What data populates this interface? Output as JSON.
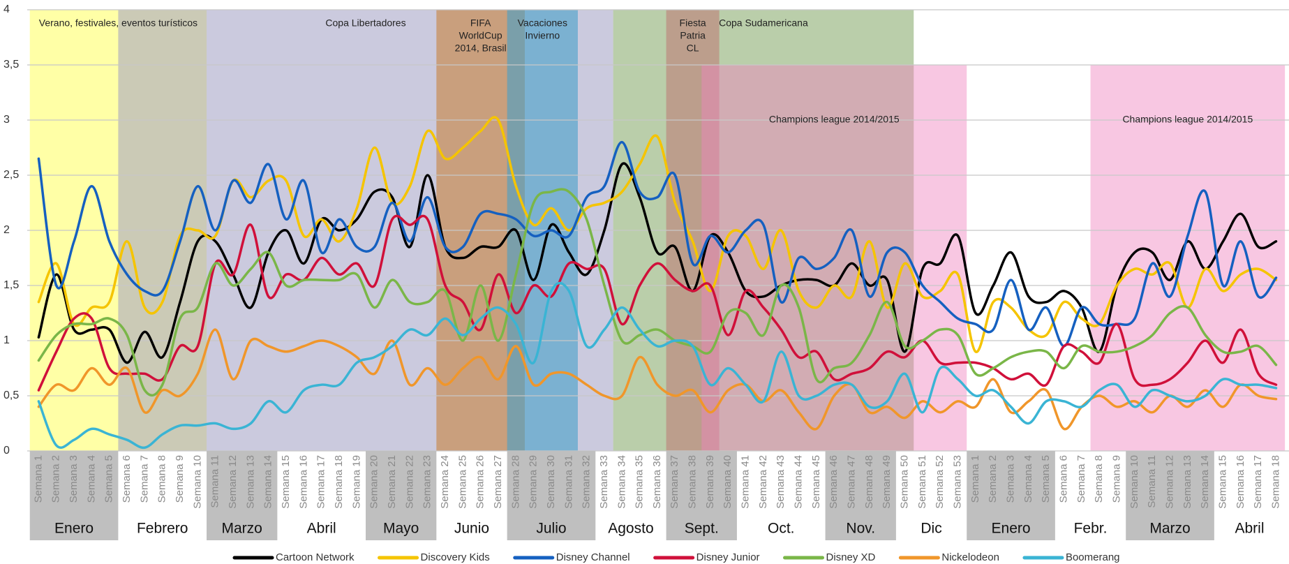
{
  "chart_data": {
    "type": "line",
    "categories": [
      "Semana 1",
      "Semana 2",
      "Semana 3",
      "Semana 4",
      "Semana 5",
      "Semana 6",
      "Semana 7",
      "Semana 8",
      "Semana 9",
      "Semana 10",
      "Semana 11",
      "Semana 12",
      "Semana 13",
      "Semana 14",
      "Semana 15",
      "Semana 16",
      "Semana 17",
      "Semana 18",
      "Semana 19",
      "Semana 20",
      "Semana 21",
      "Semana 22",
      "Semana 23",
      "Semana 24",
      "Semana 25",
      "Semana 26",
      "Semana 27",
      "Semana 28",
      "Semana 29",
      "Semana 30",
      "Semana 31",
      "Semana 32",
      "Semana 33",
      "Semana 34",
      "Semana 35",
      "Semana 36",
      "Semana 37",
      "Semana 38",
      "Semana 39",
      "Semana 40",
      "Semana 41",
      "Semana 42",
      "Semana 43",
      "Semana 44",
      "Semana 45",
      "Semana 46",
      "Semana 47",
      "Semana 48",
      "Semana 49",
      "Semana 50",
      "Semana 51",
      "Semana 52",
      "Semana 53",
      "Semana 1",
      "Semana 2",
      "Semana 3",
      "Semana 4",
      "Semana 5",
      "Semana 6",
      "Semana 7",
      "Semana 8",
      "Semana 9",
      "Semana 10",
      "Semana 11",
      "Semana 12",
      "Semana 13",
      "Semana 14",
      "Semana 15",
      "Semana 16",
      "Semana 17",
      "Semana 18"
    ],
    "months": [
      {
        "label": "Enero",
        "start": 0,
        "end": 4,
        "shaded": true
      },
      {
        "label": "Febrero",
        "start": 5,
        "end": 9,
        "shaded": false
      },
      {
        "label": "Marzo",
        "start": 10,
        "end": 13,
        "shaded": true
      },
      {
        "label": "Abril",
        "start": 14,
        "end": 18,
        "shaded": false
      },
      {
        "label": "Mayo",
        "start": 19,
        "end": 22,
        "shaded": true
      },
      {
        "label": "Junio",
        "start": 23,
        "end": 26,
        "shaded": false
      },
      {
        "label": "Julio",
        "start": 27,
        "end": 31,
        "shaded": true
      },
      {
        "label": "Agosto",
        "start": 32,
        "end": 35,
        "shaded": false
      },
      {
        "label": "Sept.",
        "start": 36,
        "end": 39,
        "shaded": true
      },
      {
        "label": "Oct.",
        "start": 40,
        "end": 44,
        "shaded": false
      },
      {
        "label": "Nov.",
        "start": 45,
        "end": 48,
        "shaded": true
      },
      {
        "label": "Dic",
        "start": 49,
        "end": 52,
        "shaded": false
      },
      {
        "label": "Enero",
        "start": 53,
        "end": 57,
        "shaded": true
      },
      {
        "label": "Febr.",
        "start": 58,
        "end": 61,
        "shaded": false
      },
      {
        "label": "Marzo",
        "start": 62,
        "end": 66,
        "shaded": true
      },
      {
        "label": "Abril",
        "start": 67,
        "end": 70,
        "shaded": false
      }
    ],
    "bands": [
      {
        "label": [
          "Verano, festivales, eventos turísticos"
        ],
        "start": 0,
        "end": 9,
        "top": 4,
        "color": "#ffffa6"
      },
      {
        "label": [
          "Copa Libertadores"
        ],
        "start": 5,
        "end": 32,
        "top": 4,
        "color": "rgba(160,158,195,0.55)"
      },
      {
        "label": [
          "Copa Sudamericana"
        ],
        "start": 33,
        "end": 49,
        "top": 4,
        "color": "rgba(130,165,100,0.55)"
      },
      {
        "label": [
          "FIFA",
          "WorldCup",
          "2014, Brasil"
        ],
        "start": 23,
        "end": 27,
        "top": 4,
        "color": "rgba(200,130,60,0.6)"
      },
      {
        "label": [
          "Vacaciones",
          "Invierno"
        ],
        "start": 27,
        "end": 30,
        "top": 4,
        "color": "rgba(70,160,200,0.6)"
      },
      {
        "label": [
          "Fiesta",
          "Patria",
          "CL"
        ],
        "start": 36,
        "end": 38,
        "top": 4,
        "color": "rgba(190,110,110,0.5)"
      },
      {
        "label": [
          "Champions league 2014/2015"
        ],
        "start": 38,
        "end": 52,
        "top": 3.5,
        "color": "rgba(240,130,190,0.45)"
      },
      {
        "label": [
          "Champions league 2014/2015"
        ],
        "start": 60,
        "end": 70,
        "top": 3.5,
        "color": "rgba(240,130,190,0.45)"
      }
    ],
    "series": [
      {
        "name": "Cartoon Network",
        "color": "#000000",
        "values": [
          1.03,
          1.6,
          1.1,
          1.1,
          1.1,
          0.8,
          1.08,
          0.85,
          1.35,
          1.9,
          1.9,
          1.6,
          1.3,
          1.8,
          2.0,
          1.7,
          2.1,
          2.0,
          2.1,
          2.35,
          2.3,
          1.85,
          2.5,
          1.85,
          1.75,
          1.85,
          1.85,
          2.0,
          1.55,
          2.05,
          1.8,
          1.6,
          2.0,
          2.6,
          2.3,
          1.8,
          1.85,
          1.45,
          1.95,
          1.8,
          1.45,
          1.4,
          1.5,
          1.55,
          1.55,
          1.5,
          1.7,
          1.5,
          1.55,
          0.9,
          1.65,
          1.7,
          1.95,
          1.25,
          1.5,
          1.8,
          1.4,
          1.35,
          1.45,
          1.3,
          0.9,
          1.5,
          1.8,
          1.8,
          1.55,
          1.9,
          1.65,
          1.9,
          2.15,
          1.85,
          1.9
        ]
      },
      {
        "name": "Discovery Kids",
        "color": "#f5c400",
        "values": [
          1.35,
          1.7,
          1.15,
          1.3,
          1.35,
          1.9,
          1.3,
          1.35,
          1.95,
          2.0,
          1.95,
          2.45,
          2.3,
          2.45,
          2.45,
          1.95,
          2.1,
          1.9,
          2.2,
          2.75,
          2.25,
          2.4,
          2.9,
          2.65,
          2.75,
          2.9,
          3.0,
          2.4,
          2.05,
          2.2,
          2.0,
          2.2,
          2.25,
          2.35,
          2.6,
          2.85,
          2.25,
          1.9,
          1.45,
          1.95,
          1.95,
          1.65,
          2.0,
          1.45,
          1.3,
          1.5,
          1.4,
          1.9,
          1.3,
          1.7,
          1.4,
          1.45,
          1.6,
          0.9,
          1.35,
          1.3,
          1.1,
          1.05,
          1.35,
          1.2,
          1.15,
          1.5,
          1.65,
          1.6,
          1.7,
          1.3,
          1.65,
          1.45,
          1.6,
          1.65,
          1.55
        ]
      },
      {
        "name": "Disney Channel",
        "color": "#1560c0",
        "values": [
          2.65,
          1.5,
          1.9,
          2.4,
          1.9,
          1.6,
          1.45,
          1.45,
          1.9,
          2.4,
          2.0,
          2.45,
          2.25,
          2.6,
          2.1,
          2.45,
          1.8,
          2.1,
          1.85,
          1.85,
          2.25,
          1.9,
          2.3,
          1.85,
          1.85,
          2.15,
          2.15,
          2.1,
          1.95,
          2.0,
          1.95,
          2.3,
          2.4,
          2.8,
          2.35,
          2.3,
          2.5,
          1.7,
          1.95,
          1.8,
          2.0,
          2.05,
          1.35,
          1.75,
          1.65,
          1.75,
          2.0,
          1.4,
          1.8,
          1.8,
          1.5,
          1.35,
          1.2,
          1.15,
          1.1,
          1.55,
          1.1,
          1.3,
          0.95,
          1.3,
          1.15,
          1.15,
          1.2,
          1.7,
          1.4,
          1.95,
          2.35,
          1.5,
          1.9,
          1.4,
          1.57
        ]
      },
      {
        "name": "Disney Junior",
        "color": "#d0103a",
        "values": [
          0.55,
          0.9,
          1.2,
          1.2,
          0.75,
          0.7,
          0.7,
          0.65,
          0.95,
          0.95,
          1.7,
          1.6,
          2.05,
          1.4,
          1.6,
          1.55,
          1.75,
          1.6,
          1.7,
          1.5,
          2.1,
          2.05,
          2.1,
          1.5,
          1.35,
          1.1,
          1.6,
          1.25,
          1.5,
          1.4,
          1.7,
          1.65,
          1.65,
          1.15,
          1.5,
          1.7,
          1.55,
          1.45,
          1.5,
          1.05,
          1.45,
          1.3,
          1.1,
          0.85,
          0.9,
          0.65,
          0.7,
          0.75,
          0.9,
          0.85,
          1.0,
          0.8,
          0.8,
          0.8,
          0.75,
          0.65,
          0.7,
          0.6,
          0.95,
          0.9,
          0.8,
          1.15,
          0.65,
          0.6,
          0.65,
          0.8,
          1.0,
          0.8,
          1.1,
          0.7,
          0.6
        ]
      },
      {
        "name": "Disney XD",
        "color": "#7ab648",
        "values": [
          0.82,
          1.05,
          1.15,
          1.15,
          1.2,
          1.05,
          0.55,
          0.6,
          1.2,
          1.3,
          1.7,
          1.5,
          1.65,
          1.8,
          1.5,
          1.55,
          1.55,
          1.55,
          1.6,
          1.3,
          1.55,
          1.35,
          1.35,
          1.45,
          1.0,
          1.5,
          1.0,
          1.6,
          2.25,
          2.35,
          2.35,
          2.1,
          1.5,
          1.0,
          1.05,
          1.1,
          1.0,
          0.95,
          0.9,
          1.25,
          1.25,
          1.05,
          1.5,
          1.3,
          0.65,
          0.75,
          0.8,
          1.05,
          1.35,
          0.95,
          1.0,
          1.1,
          1.05,
          0.7,
          0.75,
          0.85,
          0.9,
          0.9,
          0.75,
          0.95,
          0.9,
          0.9,
          0.95,
          1.05,
          1.25,
          1.3,
          1.05,
          0.9,
          0.9,
          0.95,
          0.78
        ]
      },
      {
        "name": "Nickelodeon",
        "color": "#f0962a",
        "values": [
          0.4,
          0.6,
          0.55,
          0.75,
          0.6,
          0.75,
          0.35,
          0.55,
          0.5,
          0.7,
          1.1,
          0.65,
          1.0,
          0.95,
          0.9,
          0.95,
          1.0,
          0.95,
          0.85,
          0.7,
          1.0,
          0.6,
          0.75,
          0.6,
          0.75,
          0.85,
          0.65,
          0.95,
          0.6,
          0.7,
          0.7,
          0.6,
          0.5,
          0.5,
          0.85,
          0.6,
          0.5,
          0.55,
          0.35,
          0.55,
          0.6,
          0.45,
          0.55,
          0.35,
          0.2,
          0.5,
          0.6,
          0.35,
          0.4,
          0.3,
          0.45,
          0.35,
          0.45,
          0.4,
          0.65,
          0.35,
          0.45,
          0.55,
          0.2,
          0.4,
          0.5,
          0.4,
          0.45,
          0.35,
          0.5,
          0.4,
          0.55,
          0.4,
          0.6,
          0.5,
          0.47
        ]
      },
      {
        "name": "Boomerang",
        "color": "#3ab4d4",
        "values": [
          0.45,
          0.05,
          0.1,
          0.2,
          0.15,
          0.1,
          0.03,
          0.15,
          0.23,
          0.23,
          0.25,
          0.2,
          0.25,
          0.45,
          0.35,
          0.55,
          0.6,
          0.6,
          0.8,
          0.85,
          0.95,
          1.1,
          1.05,
          1.2,
          1.05,
          1.2,
          1.3,
          1.15,
          0.8,
          1.45,
          1.45,
          0.95,
          1.1,
          1.3,
          1.1,
          0.95,
          1.0,
          0.95,
          0.6,
          0.75,
          0.6,
          0.45,
          0.9,
          0.5,
          0.5,
          0.6,
          0.6,
          0.4,
          0.45,
          0.7,
          0.35,
          0.75,
          0.65,
          0.5,
          0.55,
          0.4,
          0.25,
          0.45,
          0.45,
          0.4,
          0.55,
          0.6,
          0.4,
          0.55,
          0.5,
          0.45,
          0.5,
          0.65,
          0.6,
          0.6,
          0.57
        ]
      }
    ],
    "ylim": [
      0,
      4
    ],
    "yticks": [
      0,
      {
        "value": 0.5,
        "label": "0,5"
      },
      1,
      {
        "value": 1.5,
        "label": "1,5"
      },
      2,
      {
        "value": 2.5,
        "label": "2,5"
      },
      3,
      {
        "value": 3.5,
        "label": "3,5"
      },
      4
    ],
    "grid": true
  }
}
